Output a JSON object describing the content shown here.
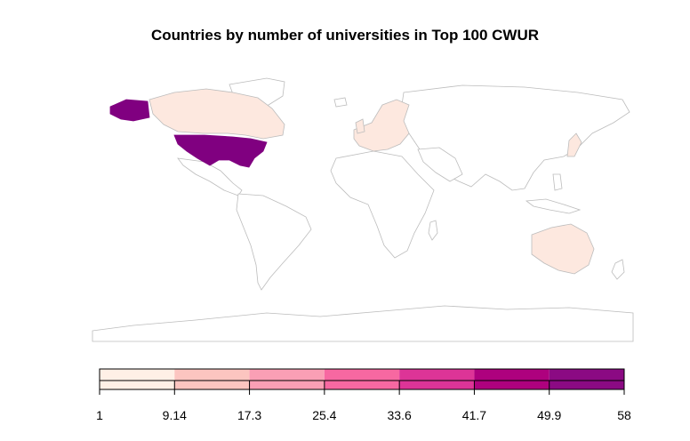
{
  "title": "Countries by number of universities in Top 100 CWUR",
  "legend": {
    "breaks": [
      "1",
      "9.14",
      "17.3",
      "25.4",
      "33.6",
      "41.7",
      "49.9",
      "58"
    ],
    "colors": [
      "#fff0e6",
      "#fcc5c0",
      "#fa9fb5",
      "#f768a1",
      "#dd3497",
      "#ae017e",
      "#8b0a83"
    ]
  },
  "map_colors": {
    "border": "#bcbcbc",
    "land_default": "#ffffff",
    "usa": "#800080",
    "low": "#fde8df"
  },
  "regions": [
    {
      "name": "United States",
      "class": "usa"
    },
    {
      "name": "Canada",
      "class": "low"
    },
    {
      "name": "Europe (UK, France, Germany, Scandinavia, etc.)",
      "class": "low"
    },
    {
      "name": "Japan",
      "class": "low"
    },
    {
      "name": "Australia",
      "class": "low"
    }
  ]
}
